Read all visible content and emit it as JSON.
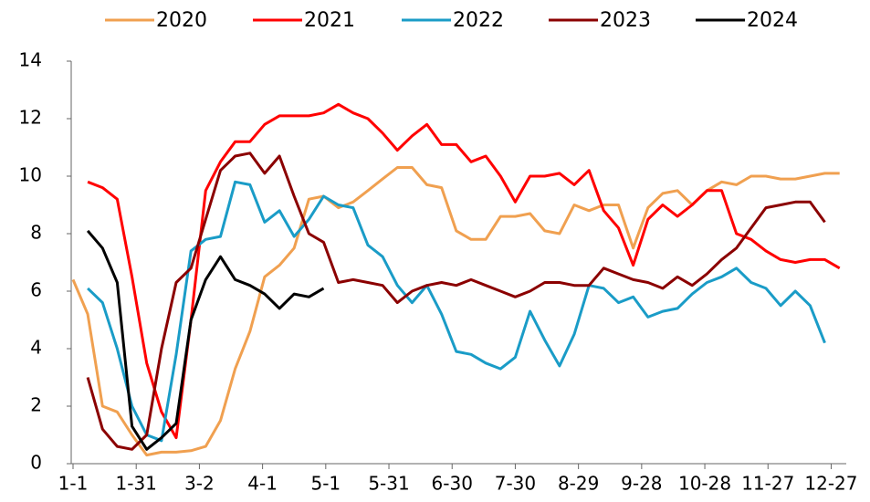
{
  "chart_data": {
    "type": "line",
    "x": [
      1,
      8,
      15,
      22,
      29,
      36,
      43,
      50,
      57,
      64,
      71,
      78,
      85,
      92,
      99,
      106,
      113,
      120,
      127,
      134,
      141,
      148,
      155,
      162,
      169,
      176,
      183,
      190,
      197,
      204,
      211,
      218,
      225,
      232,
      239,
      246,
      253,
      260,
      267,
      274,
      281,
      288,
      295,
      302,
      309,
      316,
      323,
      330,
      337,
      344,
      351,
      358,
      365
    ],
    "xlim": [
      1,
      366
    ],
    "xticks": [
      {
        "value": 1,
        "label": "1-1"
      },
      {
        "value": 31,
        "label": "1-31"
      },
      {
        "value": 61,
        "label": "3-2"
      },
      {
        "value": 91,
        "label": "4-1"
      },
      {
        "value": 121,
        "label": "5-1"
      },
      {
        "value": 151,
        "label": "5-31"
      },
      {
        "value": 181,
        "label": "6-30"
      },
      {
        "value": 211,
        "label": "7-30"
      },
      {
        "value": 241,
        "label": "8-29"
      },
      {
        "value": 271,
        "label": "9-28"
      },
      {
        "value": 301,
        "label": "10-28"
      },
      {
        "value": 331,
        "label": "11-27"
      },
      {
        "value": 361,
        "label": "12-27"
      }
    ],
    "ylim": [
      0,
      14
    ],
    "yticks": [
      0,
      2,
      4,
      6,
      8,
      10,
      12,
      14
    ],
    "legend": "top",
    "series": [
      {
        "name": "2020",
        "color": "#f0a050",
        "values": [
          6.4,
          5.2,
          2.0,
          1.8,
          1.0,
          0.3,
          0.4,
          0.4,
          0.45,
          0.6,
          1.5,
          3.3,
          4.6,
          6.5,
          6.9,
          7.5,
          9.2,
          9.3,
          8.9,
          9.1,
          9.5,
          9.9,
          10.3,
          10.3,
          9.7,
          9.6,
          8.1,
          7.8,
          7.8,
          8.6,
          8.6,
          8.7,
          8.1,
          8.0,
          9.0,
          8.8,
          9.0,
          9.0,
          7.5,
          8.9,
          9.4,
          9.5,
          9.0,
          9.5,
          9.8,
          9.7,
          10.0,
          10.0,
          9.9,
          9.9,
          10.0,
          10.1,
          10.1
        ]
      },
      {
        "name": "2021",
        "color": "#ff0000",
        "values": [
          null,
          9.8,
          9.6,
          9.2,
          6.5,
          3.5,
          1.8,
          0.9,
          5.0,
          9.5,
          10.5,
          11.2,
          11.2,
          11.8,
          12.1,
          12.1,
          12.1,
          12.2,
          12.5,
          12.2,
          12.0,
          11.5,
          10.9,
          11.4,
          11.8,
          11.1,
          11.1,
          10.5,
          10.7,
          10.0,
          9.1,
          10.0,
          10.0,
          10.1,
          9.7,
          10.2,
          8.8,
          8.2,
          6.9,
          8.5,
          9.0,
          8.6,
          9.0,
          9.5,
          9.5,
          8.0,
          7.8,
          7.4,
          7.1,
          7.0,
          7.1,
          7.1,
          6.8
        ]
      },
      {
        "name": "2022",
        "color": "#1a9cc7",
        "values": [
          null,
          6.1,
          5.6,
          4.0,
          2.0,
          1.0,
          0.8,
          3.8,
          7.4,
          7.8,
          7.9,
          9.8,
          9.7,
          8.4,
          8.8,
          7.9,
          8.5,
          9.3,
          9.0,
          8.9,
          7.6,
          7.2,
          6.2,
          5.6,
          6.2,
          5.2,
          3.9,
          3.8,
          3.5,
          3.3,
          3.7,
          5.3,
          4.3,
          3.4,
          4.5,
          6.2,
          6.1,
          5.6,
          5.8,
          5.1,
          5.3,
          5.4,
          5.9,
          6.3,
          6.5,
          6.8,
          6.3,
          6.1,
          5.5,
          6.0,
          5.5,
          4.2,
          null
        ]
      },
      {
        "name": "2023",
        "color": "#8b0000",
        "values": [
          null,
          3.0,
          1.2,
          0.6,
          0.5,
          1.0,
          4.0,
          6.3,
          6.8,
          8.5,
          10.2,
          10.7,
          10.8,
          10.1,
          10.7,
          9.3,
          8.0,
          7.7,
          6.3,
          6.4,
          6.3,
          6.2,
          5.6,
          6.0,
          6.2,
          6.3,
          6.2,
          6.4,
          6.2,
          6.0,
          5.8,
          6.0,
          6.3,
          6.3,
          6.2,
          6.2,
          6.8,
          6.6,
          6.4,
          6.3,
          6.1,
          6.5,
          6.2,
          6.6,
          7.1,
          7.5,
          8.2,
          8.9,
          9.0,
          9.1,
          9.1,
          8.4,
          null
        ]
      },
      {
        "name": "2024",
        "color": "#000000",
        "values": [
          null,
          8.1,
          7.5,
          6.3,
          1.3,
          0.5,
          0.9,
          1.4,
          5.0,
          6.4,
          7.2,
          6.4,
          6.2,
          5.9,
          5.4,
          5.9,
          5.8,
          6.1,
          null,
          null,
          null,
          null,
          null,
          null,
          null,
          null,
          null,
          null,
          null,
          null,
          null,
          null,
          null,
          null,
          null,
          null,
          null,
          null,
          null,
          null,
          null,
          null,
          null,
          null,
          null,
          null,
          null,
          null,
          null,
          null,
          null,
          null,
          null
        ]
      }
    ]
  }
}
